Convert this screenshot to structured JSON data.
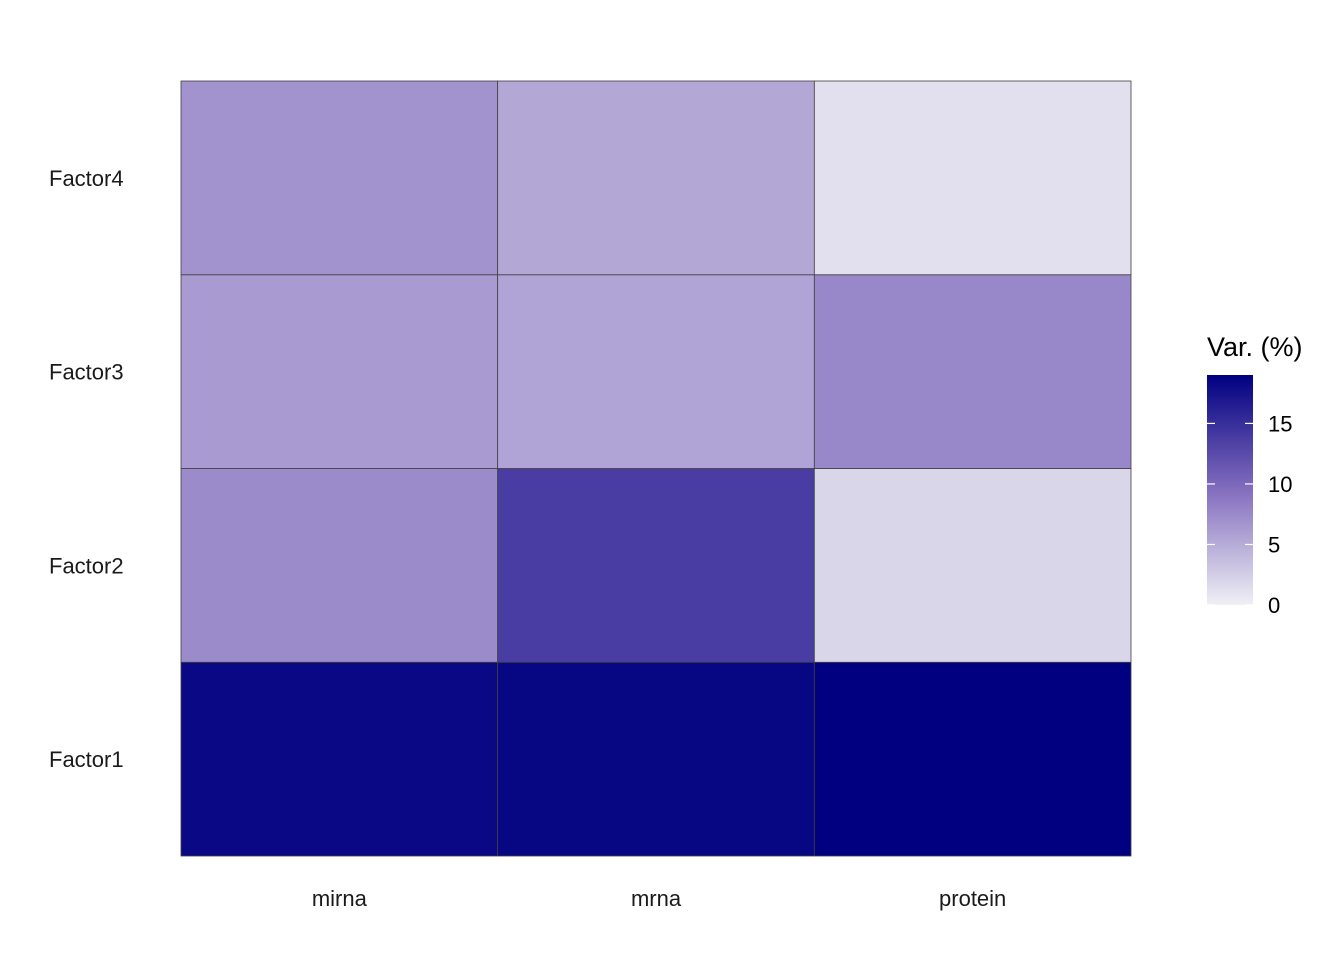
{
  "chart_data": {
    "type": "heatmap",
    "title": "",
    "xlabel": "",
    "ylabel": "",
    "x_categories": [
      "mirna",
      "mrna",
      "protein"
    ],
    "y_categories": [
      "Factor1",
      "Factor2",
      "Factor3",
      "Factor4"
    ],
    "values": [
      [
        18.3,
        18.5,
        19.0
      ],
      [
        7.4,
        13.7,
        1.9
      ],
      [
        6.2,
        5.6,
        7.6
      ],
      [
        6.8,
        5.3,
        1.2
      ]
    ],
    "color_scale": {
      "low": "#f0f0f5",
      "high": "#000080",
      "min": 0,
      "max": 19
    },
    "cell_border_color": "#404040",
    "grid": false,
    "legend": {
      "title": "Var. (%)",
      "ticks": [
        0,
        5,
        10,
        15
      ],
      "placement": "right"
    }
  }
}
